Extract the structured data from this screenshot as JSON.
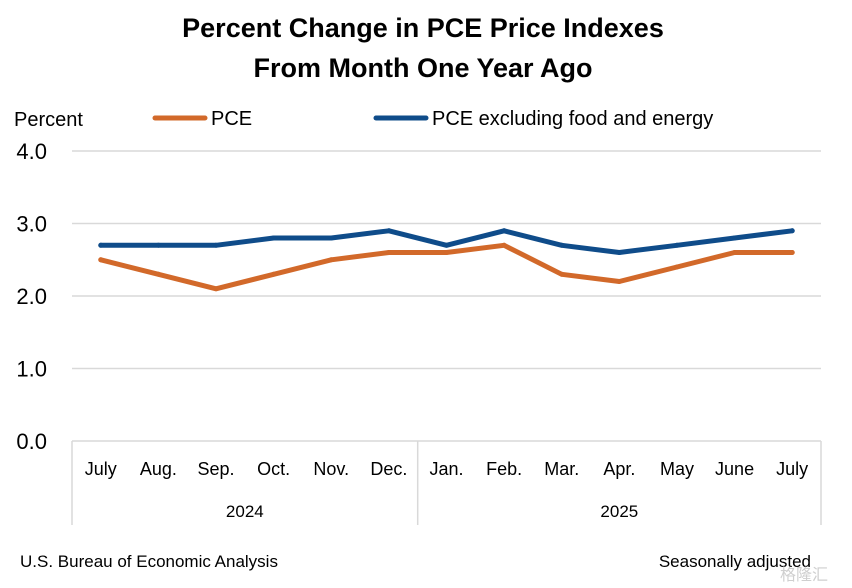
{
  "chart_data": {
    "type": "line",
    "title": [
      "Percent Change in PCE Price Indexes",
      "From Month One Year Ago"
    ],
    "ylabel": "Percent",
    "ylim": [
      0,
      4
    ],
    "yticks": [
      "0.0",
      "1.0",
      "2.0",
      "3.0",
      "4.0"
    ],
    "grid": true,
    "categories": [
      "July",
      "Aug.",
      "Sep.",
      "Oct.",
      "Nov.",
      "Dec.",
      "Jan.",
      "Feb.",
      "Mar.",
      "Apr.",
      "May",
      "June",
      "July"
    ],
    "groups": [
      {
        "label": "2024",
        "span": 6
      },
      {
        "label": "2025",
        "span": 7
      }
    ],
    "legend_position": "top",
    "series": [
      {
        "name": "PCE",
        "color": "#D2692A",
        "values": [
          2.5,
          2.3,
          2.1,
          2.3,
          2.5,
          2.6,
          2.6,
          2.7,
          2.3,
          2.2,
          2.4,
          2.6,
          2.6
        ]
      },
      {
        "name": "PCE excluding food and energy",
        "color": "#0F4C8A",
        "values": [
          2.7,
          2.7,
          2.7,
          2.8,
          2.8,
          2.9,
          2.7,
          2.9,
          2.7,
          2.6,
          2.7,
          2.8,
          2.9
        ]
      }
    ],
    "source": "U.S. Bureau of Economic Analysis",
    "note": "Seasonally adjusted"
  },
  "watermark": "格隆汇"
}
